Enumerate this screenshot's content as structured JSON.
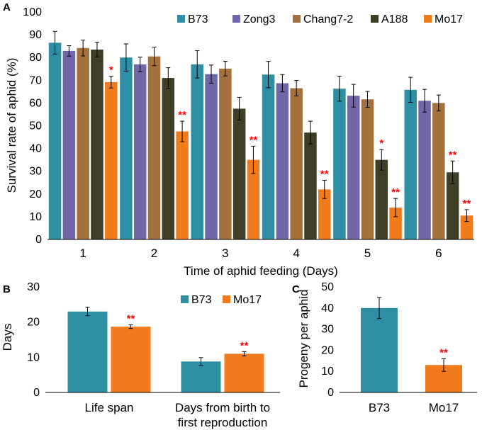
{
  "chart_data": [
    {
      "panel": "A",
      "type": "bar",
      "title": "",
      "xlabel": "Time of aphid feeding (Days)",
      "ylabel": "Survival rate of aphid (%)",
      "ylim": [
        0,
        100
      ],
      "yticks": [
        0,
        10,
        20,
        30,
        40,
        50,
        60,
        70,
        80,
        90,
        100
      ],
      "categories": [
        "1",
        "2",
        "3",
        "4",
        "5",
        "6"
      ],
      "legend_position": "top",
      "series": [
        {
          "name": "B73",
          "color": "#2e8fa4",
          "values": [
            86.5,
            80,
            77,
            72.5,
            66.3,
            65.8
          ],
          "errors": [
            5,
            6,
            6,
            5.8,
            5.5,
            5.5
          ],
          "significance": [
            "",
            "",
            "",
            "",
            "",
            ""
          ]
        },
        {
          "name": "Zong3",
          "color": "#7066a8",
          "values": [
            82.9,
            77,
            72.7,
            68.7,
            63.2,
            61
          ],
          "errors": [
            2.3,
            3.2,
            4,
            3.8,
            5,
            5
          ],
          "significance": [
            "",
            "",
            "",
            "",
            "",
            ""
          ]
        },
        {
          "name": "Chang7-2",
          "color": "#a4703c",
          "values": [
            84.2,
            80.5,
            75.1,
            66.5,
            61.6,
            60
          ],
          "errors": [
            3.5,
            4.1,
            3.2,
            3.4,
            3.5,
            3.5
          ],
          "significance": [
            "",
            "",
            "",
            "",
            "",
            ""
          ]
        },
        {
          "name": "A188",
          "color": "#3f3f28",
          "values": [
            83.5,
            71,
            57.5,
            47,
            35,
            29.5
          ],
          "errors": [
            3.2,
            4.5,
            5,
            5,
            4.5,
            5
          ],
          "significance": [
            "",
            "",
            "",
            "",
            "*",
            "**"
          ]
        },
        {
          "name": "Mo17",
          "color": "#f07b1d",
          "values": [
            69.2,
            47.5,
            35,
            22,
            14,
            10.5
          ],
          "errors": [
            2.6,
            4.5,
            6,
            4,
            4,
            2.6
          ],
          "significance": [
            "*",
            "**",
            "**",
            "**",
            "**",
            "**"
          ]
        }
      ]
    },
    {
      "panel": "B",
      "type": "bar",
      "title": "",
      "xlabel": "",
      "ylabel": "Days",
      "ylim": [
        0,
        30
      ],
      "yticks": [
        0,
        10,
        20,
        30
      ],
      "categories": [
        "Life span",
        "Days from birth to first reproduction"
      ],
      "category_lines": [
        [
          "Life span"
        ],
        [
          "Days from birth to",
          "first reproduction"
        ]
      ],
      "legend_position": "top",
      "series": [
        {
          "name": "B73",
          "color": "#2e8fa4",
          "values": [
            23,
            8.8
          ],
          "errors": [
            1.2,
            1.1
          ],
          "significance": [
            "",
            ""
          ]
        },
        {
          "name": "Mo17",
          "color": "#f07b1d",
          "values": [
            18.7,
            11
          ],
          "errors": [
            0.5,
            0.6
          ],
          "significance": [
            "**",
            "**"
          ]
        }
      ]
    },
    {
      "panel": "C",
      "type": "bar",
      "title": "",
      "xlabel": "",
      "ylabel": "Progeny per aphid",
      "ylim": [
        0,
        50
      ],
      "yticks": [
        0,
        10,
        20,
        30,
        40,
        50
      ],
      "categories": [
        "B73",
        "Mo17"
      ],
      "values": [
        40,
        13
      ],
      "errors": [
        5,
        3
      ],
      "colors": [
        "#2e8fa4",
        "#f07b1d"
      ],
      "significance": [
        "",
        "**"
      ]
    }
  ]
}
